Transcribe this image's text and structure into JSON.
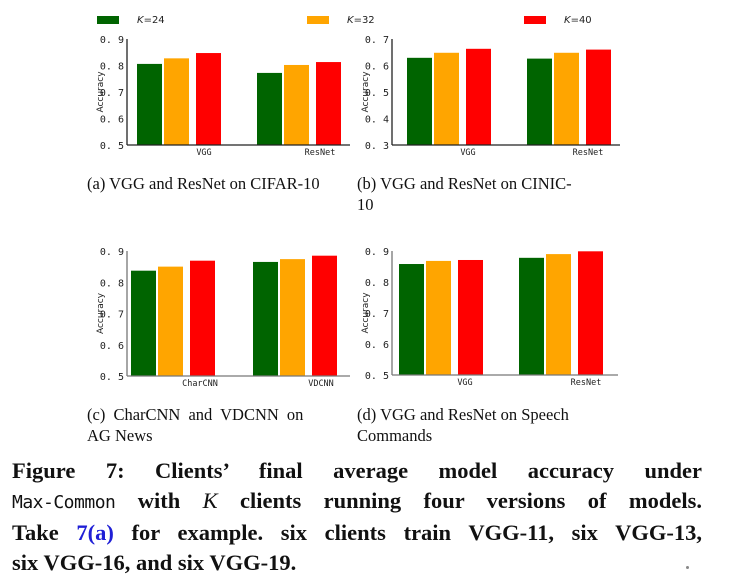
{
  "legend": {
    "items": [
      {
        "label_italic": "K",
        "label_rest": "=24",
        "color": "#006400"
      },
      {
        "label_italic": "K",
        "label_rest": "=32",
        "color": "#FFA500"
      },
      {
        "label_italic": "K",
        "label_rest": "=40",
        "color": "#FF0000"
      }
    ]
  },
  "chart_data": [
    {
      "id": "a",
      "type": "bar",
      "categories": [
        "VGG",
        "ResNet"
      ],
      "series": [
        {
          "name": "K=24",
          "values": [
            0.806,
            0.772
          ]
        },
        {
          "name": "K=32",
          "values": [
            0.827,
            0.802
          ]
        },
        {
          "name": "K=40",
          "values": [
            0.847,
            0.813
          ]
        }
      ],
      "ylabel": "Accuracy",
      "ylim": [
        0.5,
        0.9
      ],
      "yticks": [
        "0. 5",
        "0. 6",
        "0. 7",
        "0. 8",
        "0. 9"
      ],
      "ytick_values": [
        0.5,
        0.6,
        0.7,
        0.8,
        0.9
      ],
      "legend": "top",
      "grid": false
    },
    {
      "id": "b",
      "type": "bar",
      "categories": [
        "VGG",
        "ResNet"
      ],
      "series": [
        {
          "name": "K=24",
          "values": [
            0.629,
            0.626
          ]
        },
        {
          "name": "K=32",
          "values": [
            0.648,
            0.648
          ]
        },
        {
          "name": "K=40",
          "values": [
            0.663,
            0.66
          ]
        }
      ],
      "ylabel": "Accuracy",
      "ylim": [
        0.3,
        0.7
      ],
      "yticks": [
        "0. 3",
        "0. 4",
        "0. 5",
        "0. 6",
        "0. 7"
      ],
      "ytick_values": [
        0.3,
        0.4,
        0.5,
        0.6,
        0.7
      ],
      "legend": "top",
      "grid": false
    },
    {
      "id": "c",
      "type": "bar",
      "categories": [
        "CharCNN",
        "VDCNN"
      ],
      "series": [
        {
          "name": "K=24",
          "values": [
            0.837,
            0.865
          ]
        },
        {
          "name": "K=32",
          "values": [
            0.85,
            0.874
          ]
        },
        {
          "name": "K=40",
          "values": [
            0.869,
            0.885
          ]
        }
      ],
      "ylabel": "Accuracy",
      "ylim": [
        0.5,
        0.9
      ],
      "yticks": [
        "0. 5",
        "0. 6",
        "0. 7",
        "0. 8",
        "0. 9"
      ],
      "ytick_values": [
        0.5,
        0.6,
        0.7,
        0.8,
        0.9
      ],
      "legend": "top",
      "grid": false
    },
    {
      "id": "d",
      "type": "bar",
      "categories": [
        "VGG",
        "ResNet"
      ],
      "series": [
        {
          "name": "K=24",
          "values": [
            0.858,
            0.878
          ]
        },
        {
          "name": "K=32",
          "values": [
            0.868,
            0.89
          ]
        },
        {
          "name": "K=40",
          "values": [
            0.871,
            0.899
          ]
        }
      ],
      "ylabel": "Accuracy",
      "ylim": [
        0.5,
        0.9
      ],
      "yticks": [
        "0. 5",
        "0. 6",
        "0. 7",
        "0. 8",
        "0. 9"
      ],
      "ytick_values": [
        0.5,
        0.6,
        0.7,
        0.8,
        0.9
      ],
      "legend": "top",
      "grid": false
    }
  ],
  "subcaptions": {
    "a": "(a) VGG and ResNet on CIFAR-10",
    "b_line1": "(b) VGG and ResNet on CINIC-",
    "b_line2": "10",
    "c_line1": "(c) CharCNN and VDCNN on",
    "c_line2": "AG News",
    "d_line1": "(d) VGG and ResNet on Speech",
    "d_line2": "Commands"
  },
  "caption": {
    "part1": "Figure 7: Clients’ final average model accuracy under",
    "mono": "Max-Common",
    "part2": " with ",
    "italic_k": "K",
    "part3": " clients running four versions of models.",
    "part4": "Take ",
    "ref": "7(a)",
    "part5": " for example. six clients train VGG-11, six VGG-13,",
    "part6": "six VGG-16, and six VGG-19."
  }
}
